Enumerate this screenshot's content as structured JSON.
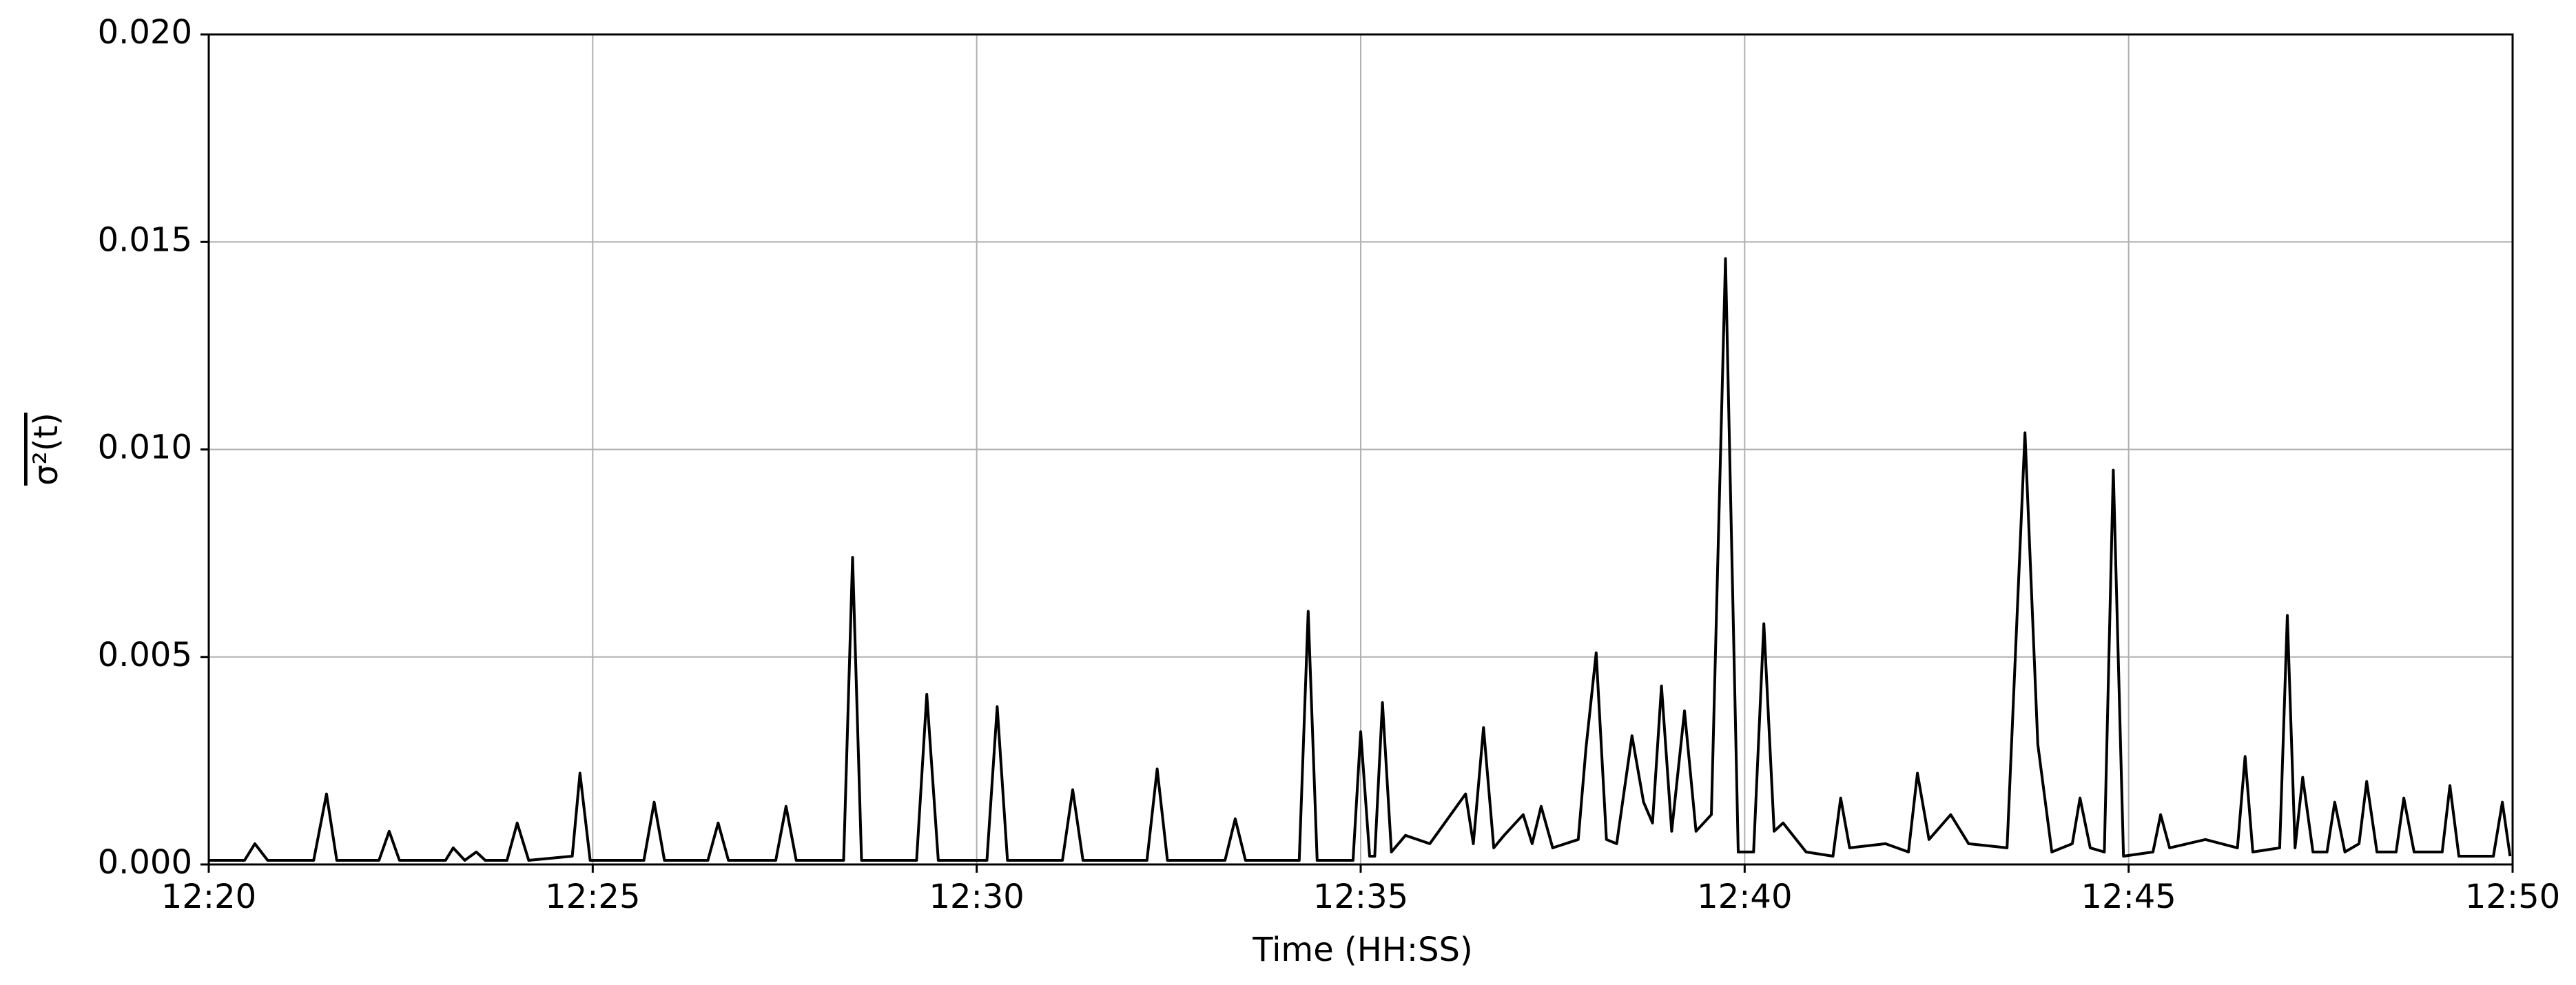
{
  "chart_data": {
    "type": "line",
    "x_label": "Time (HH:SS)",
    "y_label": "σ²(t)",
    "color": "#000000",
    "grid": true,
    "xlim": [
      "12:20",
      "12:50"
    ],
    "xticks": [
      "12:20",
      "12:25",
      "12:30",
      "12:35",
      "12:40",
      "12:45",
      "12:50"
    ],
    "ylim": [
      0,
      0.02
    ],
    "yticks": [
      {
        "value": 0,
        "label": "0.000"
      },
      0.005,
      {
        "value": 0.01,
        "label": "0.010"
      },
      0.015,
      {
        "value": 0.02,
        "label": "0.020"
      }
    ],
    "x": [
      "12:20:00",
      "12:20:28",
      "12:20:36",
      "12:20:46",
      "12:21:22",
      "12:21:32",
      "12:21:40",
      "12:22:13",
      "12:22:21",
      "12:22:29",
      "12:23:05",
      "12:23:11",
      "12:23:20",
      "12:23:29",
      "12:23:36",
      "12:23:53",
      "12:24:01",
      "12:24:10",
      "12:24:44",
      "12:24:50",
      "12:24:58",
      "12:25:40",
      "12:25:48",
      "12:25:56",
      "12:26:30",
      "12:26:38",
      "12:26:46",
      "12:27:23",
      "12:27:31",
      "12:27:39",
      "12:28:16",
      "12:28:23",
      "12:28:30",
      "12:29:13",
      "12:29:21",
      "12:29:30",
      "12:30:08",
      "12:30:16",
      "12:30:24",
      "12:31:07",
      "12:31:15",
      "12:31:23",
      "12:32:13",
      "12:32:21",
      "12:32:29",
      "12:33:14",
      "12:33:22",
      "12:33:30",
      "12:34:12",
      "12:34:19",
      "12:34:26",
      "12:34:54",
      "12:35:00",
      "12:35:07",
      "12:35:11",
      "12:35:17",
      "12:35:24",
      "12:35:35",
      "12:35:54",
      "12:36:22",
      "12:36:28",
      "12:36:36",
      "12:36:44",
      "12:36:52",
      "12:37:07",
      "12:37:14",
      "12:37:21",
      "12:37:30",
      "12:37:50",
      "12:37:56",
      "12:38:04",
      "12:38:12",
      "12:38:20",
      "12:38:32",
      "12:38:41",
      "12:38:48",
      "12:38:55",
      "12:39:03",
      "12:39:13",
      "12:39:22",
      "12:39:34",
      "12:39:45",
      "12:39:55",
      "12:40:07",
      "12:40:15",
      "12:40:23",
      "12:40:30",
      "12:40:48",
      "12:41:09",
      "12:41:15",
      "12:41:22",
      "12:41:50",
      "12:42:08",
      "12:42:15",
      "12:42:24",
      "12:42:41",
      "12:42:55",
      "12:43:25",
      "12:43:39",
      "12:43:49",
      "12:44:00",
      "12:44:16",
      "12:44:22",
      "12:44:30",
      "12:44:41",
      "12:44:48",
      "12:44:56",
      "12:45:19",
      "12:45:25",
      "12:45:32",
      "12:46:00",
      "12:46:25",
      "12:46:31",
      "12:46:37",
      "12:46:58",
      "12:47:04",
      "12:47:10",
      "12:47:16",
      "12:47:24",
      "12:47:35",
      "12:47:41",
      "12:47:49",
      "12:48:00",
      "12:48:06",
      "12:48:14",
      "12:48:29",
      "12:48:35",
      "12:48:43",
      "12:49:05",
      "12:49:11",
      "12:49:18",
      "12:49:45",
      "12:49:52",
      "12:49:58"
    ],
    "values": [
      0.0001,
      0.0001,
      0.0005,
      0.0001,
      0.0001,
      0.0017,
      0.0001,
      0.0001,
      0.0008,
      0.0001,
      0.0001,
      0.0004,
      0.0001,
      0.0003,
      0.0001,
      0.0001,
      0.001,
      0.0001,
      0.0002,
      0.0022,
      0.0001,
      0.0001,
      0.0015,
      0.0001,
      0.0001,
      0.001,
      0.0001,
      0.0001,
      0.0014,
      0.0001,
      0.0001,
      0.0074,
      0.0001,
      0.0001,
      0.0041,
      0.0001,
      0.0001,
      0.0038,
      0.0001,
      0.0001,
      0.0018,
      0.0001,
      0.0001,
      0.0023,
      0.0001,
      0.0001,
      0.0011,
      0.0001,
      0.0001,
      0.0061,
      0.0001,
      0.0001,
      0.0032,
      0.0002,
      0.0002,
      0.0039,
      0.0003,
      0.0007,
      0.0005,
      0.0017,
      0.0005,
      0.0033,
      0.0004,
      0.0007,
      0.0012,
      0.0005,
      0.0014,
      0.0004,
      0.0006,
      0.0028,
      0.0051,
      0.0006,
      0.0005,
      0.0031,
      0.0015,
      0.001,
      0.0043,
      0.0008,
      0.0037,
      0.0008,
      0.0012,
      0.0146,
      0.0003,
      0.0003,
      0.0058,
      0.0008,
      0.001,
      0.0003,
      0.0002,
      0.0016,
      0.0004,
      0.0005,
      0.0003,
      0.0022,
      0.0006,
      0.0012,
      0.0005,
      0.0004,
      0.0104,
      0.0029,
      0.0003,
      0.0005,
      0.0016,
      0.0004,
      0.0003,
      0.0095,
      0.0002,
      0.0003,
      0.0012,
      0.0004,
      0.0006,
      0.0004,
      0.0026,
      0.0003,
      0.0004,
      0.006,
      0.0004,
      0.0021,
      0.0003,
      0.0003,
      0.0015,
      0.0003,
      0.0005,
      0.002,
      0.0003,
      0.0003,
      0.0016,
      0.0003,
      0.0003,
      0.0019,
      0.0002,
      0.0002,
      0.0015,
      0.0002
    ]
  }
}
